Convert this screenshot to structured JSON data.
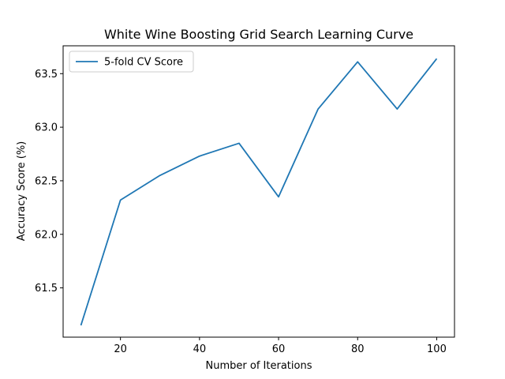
{
  "chart_data": {
    "type": "line",
    "title": "White Wine Boosting Grid Search Learning Curve",
    "xlabel": "Number of Iterations",
    "ylabel": "Accuracy Score (%)",
    "xlim": [
      5.5,
      104.5
    ],
    "ylim": [
      61.04,
      63.76
    ],
    "xticks": [
      20,
      40,
      60,
      80,
      100
    ],
    "yticks": [
      61.5,
      62.0,
      62.5,
      63.0,
      63.5
    ],
    "ytick_labels": [
      "61.5",
      "62.0",
      "62.5",
      "63.0",
      "63.5"
    ],
    "grid": false,
    "legend_position": "upper-left",
    "series": [
      {
        "name": "5-fold CV Score",
        "color": "#1f77b4",
        "x": [
          10,
          20,
          30,
          40,
          50,
          60,
          70,
          80,
          90,
          100
        ],
        "y": [
          61.15,
          62.32,
          62.55,
          62.73,
          62.85,
          62.35,
          63.17,
          63.61,
          63.17,
          63.64
        ]
      }
    ]
  }
}
